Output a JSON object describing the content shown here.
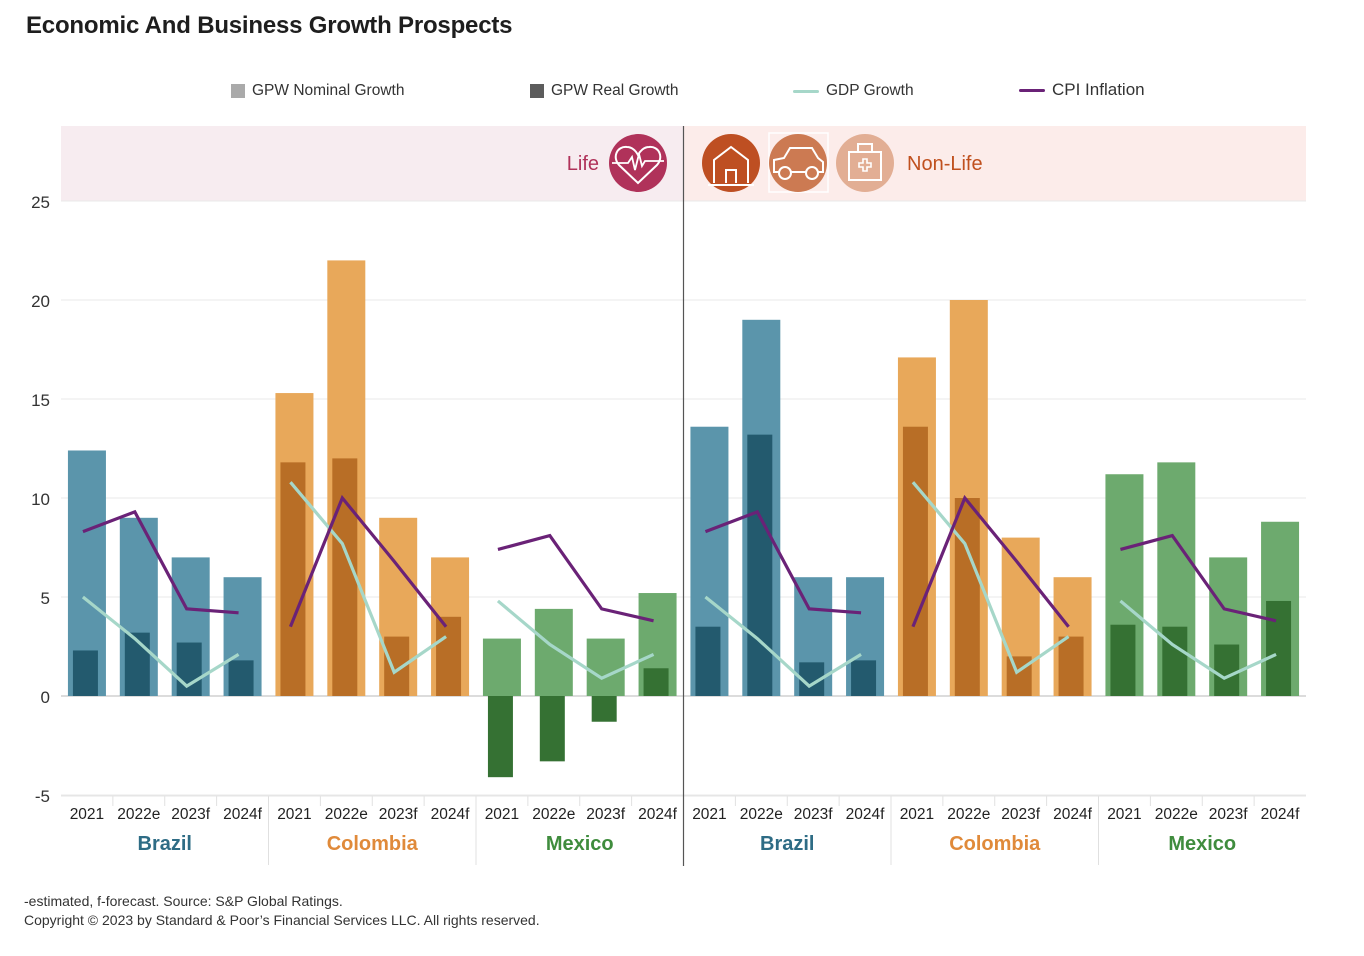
{
  "title": "Economic And Business Growth Prospects",
  "legend": [
    {
      "label": "GPW Nominal Growth",
      "kind": "box",
      "color": "#aaaaaa"
    },
    {
      "label": "GPW Real Growth",
      "kind": "box",
      "color": "#5c5c5c"
    },
    {
      "label": "GDP Growth",
      "kind": "line",
      "color": "#a6d7c9"
    },
    {
      "label": "CPI Inflation",
      "kind": "line",
      "color": "#6a2277"
    }
  ],
  "bands": {
    "life": {
      "label": "Life",
      "color": "#b0325a",
      "bg": "#f7ecf0",
      "icons": [
        "heart-pulse-icon"
      ]
    },
    "non_life": {
      "label": "Non-Life",
      "color": "#c0501e",
      "bg": "#fcecea",
      "icons": [
        "house-icon",
        "car-icon",
        "medical-kit-icon"
      ]
    }
  },
  "colors": {
    "Brazil": {
      "nominal": "#5b95ab",
      "real": "#235a6e",
      "label": "#2e6c85"
    },
    "Colombia": {
      "nominal": "#e8a85a",
      "real": "#b86e26",
      "label": "#e08a3a"
    },
    "Mexico": {
      "nominal": "#6daa6e",
      "real": "#357133",
      "label": "#3f8c3d"
    },
    "gdp": "#a6d7c9",
    "cpi": "#6a2277"
  },
  "footer": {
    "note": "-estimated, f-forecast. Source: S&P Global Ratings.",
    "copyright": "Copyright © 2023 by Standard & Poor’s Financial Services LLC. All rights reserved."
  },
  "chart_data": {
    "type": "bar",
    "title": "Economic And Business Growth Prospects",
    "xlabel": "",
    "ylabel": "",
    "ylim": [
      -5,
      25
    ],
    "yticks": [
      -5,
      0,
      5,
      10,
      15,
      20,
      25
    ],
    "grid": true,
    "legend_position": "top",
    "years": [
      "2021",
      "2022e",
      "2023f",
      "2024f"
    ],
    "panels": [
      {
        "segment": "Life",
        "groups": [
          {
            "country": "Brazil",
            "nominal": [
              12.4,
              9.0,
              7.0,
              6.0
            ],
            "real": [
              2.3,
              3.2,
              2.7,
              1.8
            ],
            "gdp": [
              5.0,
              2.9,
              0.5,
              2.1
            ],
            "cpi": [
              8.3,
              9.3,
              4.4,
              4.2
            ]
          },
          {
            "country": "Colombia",
            "nominal": [
              15.3,
              22.0,
              9.0,
              7.0
            ],
            "real": [
              11.8,
              12.0,
              3.0,
              4.0
            ],
            "gdp": [
              10.8,
              7.7,
              1.2,
              3.0
            ],
            "cpi": [
              3.5,
              10.0,
              6.8,
              3.5
            ]
          },
          {
            "country": "Mexico",
            "nominal": [
              2.9,
              4.4,
              2.9,
              5.2
            ],
            "real": [
              -4.1,
              -3.3,
              -1.3,
              1.4
            ],
            "gdp": [
              4.8,
              2.6,
              0.9,
              2.1
            ],
            "cpi": [
              7.4,
              8.1,
              4.4,
              3.8
            ]
          }
        ]
      },
      {
        "segment": "Non-Life",
        "groups": [
          {
            "country": "Brazil",
            "nominal": [
              13.6,
              19.0,
              6.0,
              6.0
            ],
            "real": [
              3.5,
              13.2,
              1.7,
              1.8
            ],
            "gdp": [
              5.0,
              2.9,
              0.5,
              2.1
            ],
            "cpi": [
              8.3,
              9.3,
              4.4,
              4.2
            ]
          },
          {
            "country": "Colombia",
            "nominal": [
              17.1,
              20.0,
              8.0,
              6.0
            ],
            "real": [
              13.6,
              10.0,
              2.0,
              3.0
            ],
            "gdp": [
              10.8,
              7.7,
              1.2,
              3.0
            ],
            "cpi": [
              3.5,
              10.0,
              6.8,
              3.5
            ]
          },
          {
            "country": "Mexico",
            "nominal": [
              11.2,
              11.8,
              7.0,
              8.8
            ],
            "real": [
              3.6,
              3.5,
              2.6,
              4.8
            ],
            "gdp": [
              4.8,
              2.6,
              0.9,
              2.1
            ],
            "cpi": [
              7.4,
              8.1,
              4.4,
              3.8
            ]
          }
        ]
      }
    ]
  }
}
